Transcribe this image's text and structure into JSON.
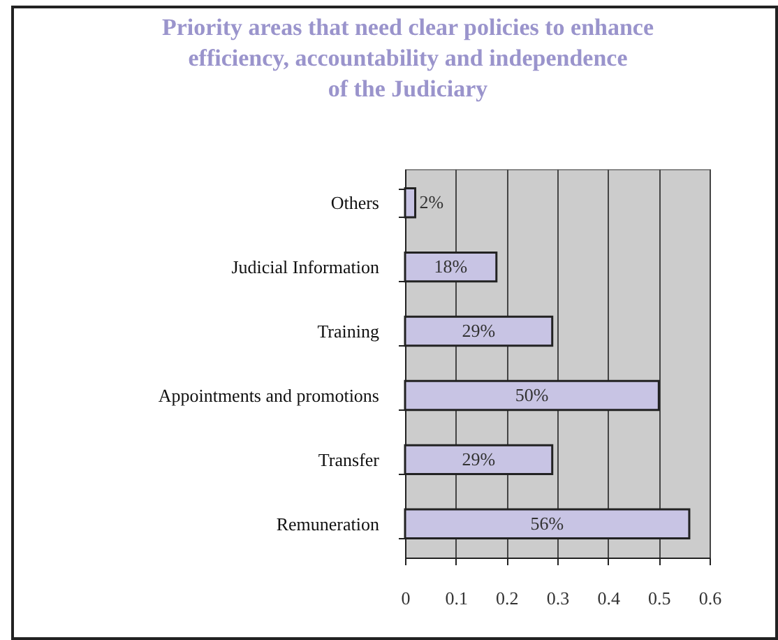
{
  "chart_data": {
    "type": "bar",
    "orientation": "horizontal",
    "title": "Priority areas that need clear policies to enhance\nefficiency, accountability and independence\nof  the Judiciary",
    "categories": [
      "Others",
      "Judicial Information",
      "Training",
      "Appointments and promotions",
      "Transfer",
      "Remuneration"
    ],
    "values": [
      0.02,
      0.18,
      0.29,
      0.5,
      0.29,
      0.56
    ],
    "value_labels": [
      "2%",
      "18%",
      "29%",
      "50%",
      "29%",
      "56%"
    ],
    "color": "#c8c4e4",
    "xlim": [
      0,
      0.6
    ],
    "xticks": [
      0,
      0.1,
      0.2,
      0.3,
      0.4,
      0.5,
      0.6
    ],
    "grid": "x"
  }
}
